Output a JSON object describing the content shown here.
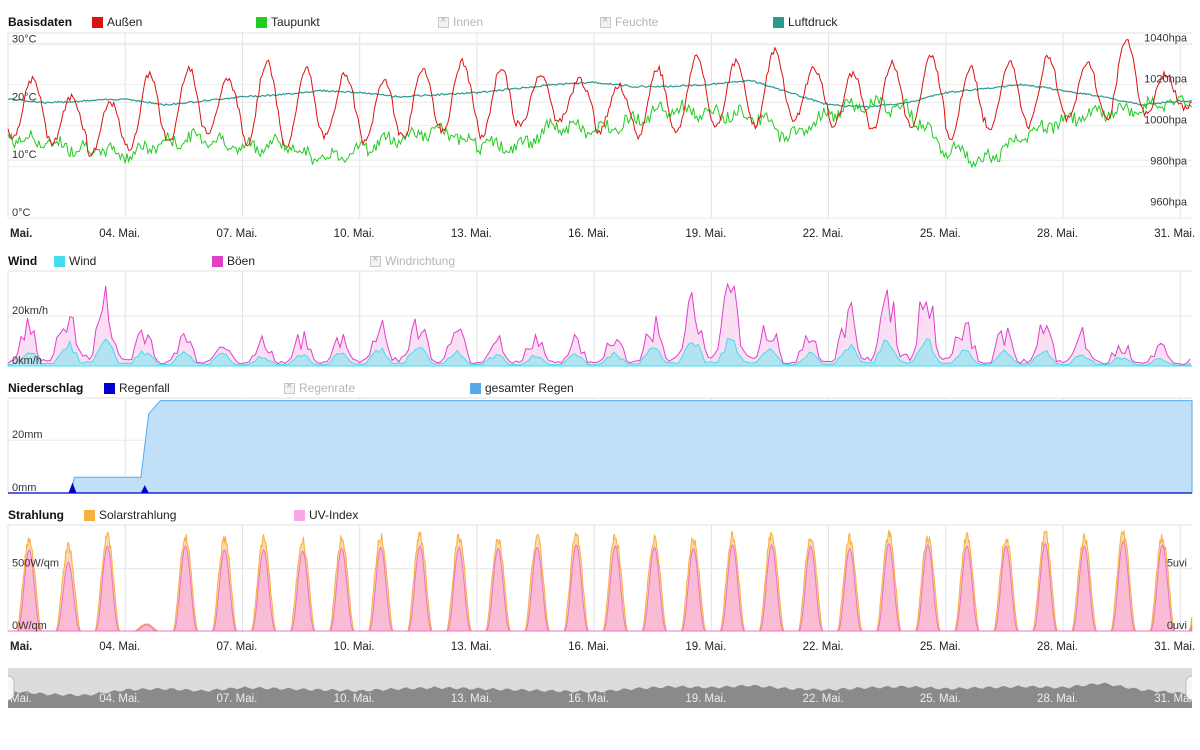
{
  "legends": {
    "basis": {
      "title": "Basisdaten",
      "items": [
        {
          "label": "Außen",
          "color": "#dd1111",
          "enabled": true
        },
        {
          "label": "Taupunkt",
          "color": "#22cc22",
          "enabled": true
        },
        {
          "label": "Innen",
          "color": "#cccccc",
          "enabled": false
        },
        {
          "label": "Feuchte",
          "color": "#cccccc",
          "enabled": false
        },
        {
          "label": "Luftdruck",
          "color": "#2a9a8e",
          "enabled": true
        }
      ]
    },
    "wind": {
      "title": "Wind",
      "items": [
        {
          "label": "Wind",
          "color": "#44ddee",
          "enabled": true
        },
        {
          "label": "Böen",
          "color": "#e040c8",
          "enabled": true
        },
        {
          "label": "Windrichtung",
          "color": "#cccccc",
          "enabled": false
        }
      ]
    },
    "rain": {
      "title": "Niederschlag",
      "items": [
        {
          "label": "Regenfall",
          "color": "#0000cc",
          "enabled": true
        },
        {
          "label": "Regenrate",
          "color": "#cccccc",
          "enabled": false
        },
        {
          "label": "gesamter Regen",
          "color": "#55aaee",
          "enabled": true
        }
      ]
    },
    "solar": {
      "title": "Strahlung",
      "items": [
        {
          "label": "Solarstrahlung",
          "color": "#f5b040",
          "enabled": true
        },
        {
          "label": "UV-Index",
          "color": "#f8a8e8",
          "enabled": true
        }
      ]
    }
  },
  "x_axis": {
    "tick_labels": [
      "Mai.",
      "04. Mai.",
      "07. Mai.",
      "10. Mai.",
      "13. Mai.",
      "16. Mai.",
      "19. Mai.",
      "22. Mai.",
      "25. Mai.",
      "28. Mai.",
      "31. Mai."
    ]
  },
  "chart_data": [
    {
      "type": "line",
      "panel": "basis",
      "x_range": [
        "01. Mai.",
        "31. Mai."
      ],
      "y_left": {
        "labels": [
          "0°C",
          "10°C",
          "20°C",
          "30°C"
        ],
        "range": [
          0,
          32
        ]
      },
      "y_right": {
        "labels": [
          "960hpa",
          "980hpa",
          "1000hpa",
          "1020hpa",
          "1040hpa"
        ],
        "range": [
          955,
          1045
        ]
      },
      "series": [
        {
          "name": "Außen",
          "color": "#dd1111",
          "axis": "left",
          "daily_min": [
            14,
            13,
            11,
            12,
            13,
            15,
            13,
            12,
            14,
            13,
            14,
            15,
            14,
            16,
            17,
            15,
            14,
            15,
            16,
            16,
            17,
            16,
            15,
            16,
            14,
            15,
            16,
            17,
            17,
            18,
            19
          ],
          "daily_max": [
            24,
            21,
            20,
            25,
            26,
            24,
            27,
            26,
            25,
            24,
            26,
            27,
            26,
            25,
            24,
            23,
            26,
            28,
            27,
            29,
            26,
            25,
            27,
            28,
            26,
            27,
            28,
            27,
            31,
            25,
            22
          ]
        },
        {
          "name": "Taupunkt",
          "color": "#22cc22",
          "axis": "left",
          "daily_values": [
            14,
            13,
            12,
            11,
            13,
            14,
            12,
            13,
            10,
            12,
            14,
            15,
            13,
            12,
            16,
            15,
            17,
            19,
            18,
            18,
            14,
            18,
            20,
            19,
            12,
            10,
            14,
            17,
            18,
            19,
            20
          ]
        },
        {
          "name": "Luftdruck",
          "color": "#2a9a8e",
          "axis": "right",
          "daily_values": [
            1013,
            1011,
            1012,
            1013,
            1010,
            1012,
            1014,
            1015,
            1017,
            1016,
            1014,
            1015,
            1016,
            1018,
            1020,
            1021,
            1019,
            1019,
            1020,
            1022,
            1016,
            1010,
            1009,
            1011,
            1016,
            1018,
            1020,
            1017,
            1014,
            1010,
            1012
          ]
        }
      ]
    },
    {
      "type": "area",
      "panel": "wind",
      "y_left": {
        "labels": [
          "0km/h",
          "20km/h"
        ],
        "range": [
          0,
          38
        ]
      },
      "series": [
        {
          "name": "Böen",
          "color": "#e040c8",
          "daily_peak": [
            12,
            18,
            30,
            20,
            10,
            14,
            8,
            12,
            11,
            14,
            22,
            16,
            11,
            12,
            11,
            10,
            14,
            20,
            33,
            24,
            10,
            14,
            26,
            30,
            24,
            12,
            16,
            14,
            10,
            8,
            6
          ]
        },
        {
          "name": "Wind",
          "color": "#44ddee",
          "daily_peak": [
            4,
            6,
            10,
            7,
            4,
            5,
            3,
            4,
            4,
            5,
            8,
            6,
            4,
            4,
            4,
            4,
            5,
            8,
            10,
            8,
            4,
            5,
            9,
            10,
            8,
            4,
            6,
            5,
            4,
            3,
            2
          ]
        }
      ]
    },
    {
      "type": "area",
      "panel": "rain",
      "y_left": {
        "labels": [
          "0mm",
          "20mm"
        ],
        "range": [
          0,
          36
        ]
      },
      "series": [
        {
          "name": "gesamter Regen",
          "color": "#55aaee",
          "cumulative_mm": [
            {
              "day": 1,
              "value": 0
            },
            {
              "day": 2.6,
              "value": 0
            },
            {
              "day": 2.7,
              "value": 6
            },
            {
              "day": 4.4,
              "value": 6
            },
            {
              "day": 4.6,
              "value": 30
            },
            {
              "day": 4.9,
              "value": 35
            },
            {
              "day": 31,
              "value": 35
            }
          ]
        },
        {
          "name": "Regenfall",
          "color": "#0000cc",
          "events": [
            {
              "day": 2.65,
              "value": 4
            },
            {
              "day": 4.5,
              "value": 3
            }
          ]
        }
      ]
    },
    {
      "type": "area",
      "panel": "solar",
      "y_left": {
        "labels": [
          "0W/qm",
          "500W/qm"
        ],
        "range": [
          0,
          850
        ]
      },
      "y_right": {
        "labels": [
          "0uvi",
          "5uvi"
        ],
        "range": [
          0,
          8.5
        ]
      },
      "series": [
        {
          "name": "Solarstrahlung",
          "color": "#f5b040",
          "daily_peak": [
            780,
            720,
            800,
            60,
            800,
            790,
            780,
            770,
            790,
            800,
            810,
            800,
            790,
            800,
            820,
            810,
            800,
            780,
            810,
            820,
            800,
            790,
            820,
            810,
            800,
            810,
            830,
            800,
            840,
            800,
            780
          ]
        },
        {
          "name": "UV-Index",
          "color": "#f8a8e8",
          "daily_peak": [
            6.5,
            5.5,
            6.8,
            0.5,
            6.8,
            6.5,
            6.5,
            6.4,
            6.6,
            6.7,
            6.8,
            6.7,
            6.6,
            6.7,
            6.9,
            6.8,
            6.7,
            6.6,
            6.9,
            6.9,
            6.8,
            6.6,
            7.0,
            6.9,
            6.8,
            6.8,
            7.0,
            6.8,
            7.2,
            6.9,
            6.7
          ]
        }
      ]
    }
  ]
}
